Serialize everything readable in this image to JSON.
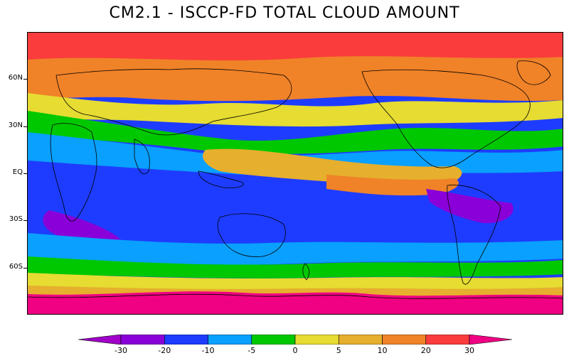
{
  "title": "CM2.1 - ISCCP-FD TOTAL CLOUD AMOUNT",
  "y_ticks": [
    {
      "label": "60N",
      "lat": 60
    },
    {
      "label": "30N",
      "lat": 30
    },
    {
      "label": "EQ",
      "lat": 0
    },
    {
      "label": "30S",
      "lat": -30
    },
    {
      "label": "60S",
      "lat": -60
    }
  ],
  "lat_range": [
    -90,
    90
  ],
  "colorbar": {
    "levels": [
      "-30",
      "-20",
      "-10",
      "-5",
      "0",
      "5",
      "10",
      "20",
      "30"
    ],
    "colors": [
      "#a000c8",
      "#8a00d8",
      "#1e3cff",
      "#0aa0ff",
      "#00c800",
      "#e6dc32",
      "#e6af2d",
      "#f08228",
      "#fa3c3c",
      "#f00082"
    ],
    "extend": "both"
  },
  "palette": {
    "purple": "#8a00d8",
    "blue": "#1e3cff",
    "cyan": "#0aa0ff",
    "green": "#00c800",
    "yellow": "#e6dc32",
    "orange": "#e6af2d",
    "dark_orange": "#f08228",
    "red": "#fa3c3c",
    "magenta": "#f00082"
  }
}
